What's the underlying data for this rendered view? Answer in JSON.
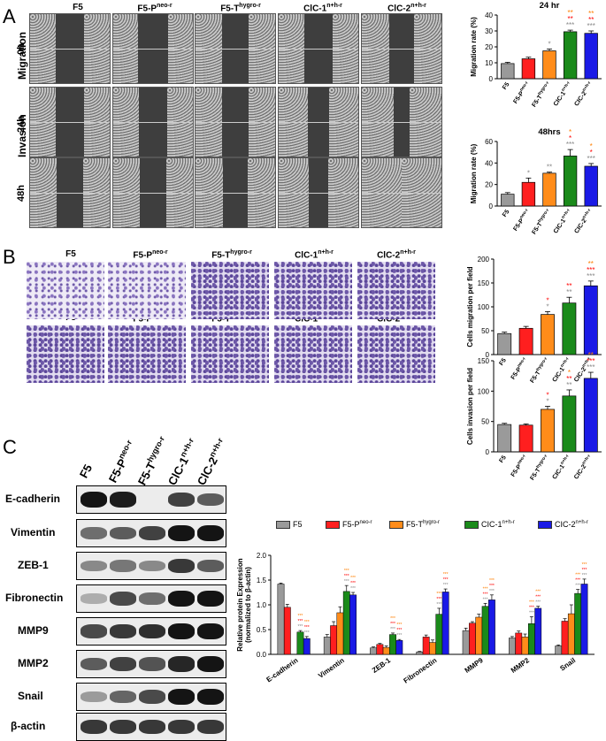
{
  "panels": {
    "a": "A",
    "b": "B",
    "c": "C"
  },
  "groups": [
    "F5",
    "F5-P",
    "F5-T",
    "CIC-1",
    "CIC-2"
  ],
  "group_sups": [
    "",
    "neo-r",
    "hygro-r",
    "n+h-r",
    "n+h-r"
  ],
  "colors": {
    "F5": "#9a9a9a",
    "F5-P": "#ff1f1f",
    "F5-T": "#ff8c1a",
    "CIC-1": "#1a8a1a",
    "CIC-2": "#1a1ae6",
    "sig_orange": "#ff7f00",
    "sig_red": "#ff0000",
    "sig_gray": "#888888"
  },
  "panel_a": {
    "row_labels": [
      "Migration",
      "Invasion",
      "0h",
      "24h",
      "48h"
    ],
    "header": [
      "F5",
      "F5-P",
      "F5-T",
      "ClC-1",
      "ClC-2"
    ],
    "header_sups": [
      "",
      "neo-r",
      "hygro-r",
      "n+h-r",
      "n+h-r"
    ]
  },
  "panel_b": {
    "header": [
      "F5",
      "F5-P",
      "F5-T",
      "ClC-1",
      "ClC-2"
    ],
    "header_sups": [
      "",
      "neo-r",
      "hygro-r",
      "n+h-r",
      "n+h-r"
    ]
  },
  "panel_c": {
    "header": [
      "F5",
      "F5-P",
      "F5-T",
      "ClC-1",
      "ClC-2"
    ],
    "header_sups": [
      "",
      "neo-r",
      "hygro-r",
      "n+h-r",
      "n+h-r"
    ],
    "proteins": [
      "E-cadherin",
      "Vimentin",
      "ZEB-1",
      "Fibronectin",
      "MMP9",
      "MMP2",
      "Snail",
      "β-actin"
    ],
    "legend": [
      "F5",
      "F5-P",
      "F5-T",
      "CIC-1",
      "CIC-2"
    ],
    "legend_sups": [
      "",
      "neo-r",
      "hygro-r",
      "n+h-r",
      "n+h-r"
    ]
  },
  "chart_data": [
    {
      "type": "bar",
      "title": "24 hr",
      "categories": [
        "F5",
        "F5-P",
        "F5-T",
        "CIC-1",
        "CIC-2"
      ],
      "category_sups": [
        "",
        "neo-r",
        "hygro-r",
        "n+h-r",
        "n+h-r"
      ],
      "values": [
        9.5,
        12.5,
        17.5,
        29.5,
        28.5
      ],
      "errors": [
        0.8,
        1.0,
        1.2,
        1.0,
        1.5
      ],
      "sig": [
        [],
        [],
        [
          "*"
        ],
        [
          "**",
          "**",
          "***"
        ],
        [
          "**",
          "**",
          "***"
        ]
      ],
      "ylabel": "Migration rate (%)",
      "ylim": [
        0,
        40
      ],
      "yticks": [
        0,
        10,
        20,
        30,
        40
      ]
    },
    {
      "type": "bar",
      "title": "48hrs",
      "categories": [
        "F5",
        "F5-P",
        "F5-T",
        "CIC-1",
        "CIC-2"
      ],
      "category_sups": [
        "",
        "neo-r",
        "hygro-r",
        "n+h-r",
        "n+h-r"
      ],
      "values": [
        11,
        22,
        30.5,
        46.5,
        37
      ],
      "errors": [
        1.5,
        4,
        1,
        6,
        2.5
      ],
      "sig": [
        [],
        [
          "*"
        ],
        [
          "**"
        ],
        [
          "*",
          "*",
          "***"
        ],
        [
          "*",
          "*",
          "***"
        ]
      ],
      "ylabel": "Migration rate (%)",
      "ylim": [
        0,
        60
      ],
      "yticks": [
        0,
        20,
        40,
        60
      ]
    },
    {
      "type": "bar",
      "title": "",
      "categories": [
        "F5",
        "F5-P",
        "F5-T",
        "CIC-1",
        "CIC-2"
      ],
      "category_sups": [
        "",
        "neo-r",
        "hygro-r",
        "n+h-r",
        "n+h-r"
      ],
      "values": [
        44,
        55,
        84,
        108,
        144
      ],
      "errors": [
        3,
        4,
        6,
        12,
        10
      ],
      "sig": [
        [],
        [],
        [
          "*",
          "*"
        ],
        [
          "**",
          "**"
        ],
        [
          "**",
          "***",
          "***"
        ]
      ],
      "ylabel": "Cells migration per field",
      "ylim": [
        0,
        200
      ],
      "yticks": [
        0,
        50,
        100,
        150,
        200
      ]
    },
    {
      "type": "bar",
      "title": "",
      "categories": [
        "F5",
        "F5-P",
        "F5-T",
        "CIC-1",
        "CIC-2"
      ],
      "category_sups": [
        "",
        "neo-r",
        "hygro-r",
        "n+h-r",
        "n+h-r"
      ],
      "values": [
        45,
        44,
        70,
        92,
        121
      ],
      "errors": [
        2,
        2,
        5,
        10,
        10
      ],
      "sig": [
        [],
        [],
        [
          "*",
          "*"
        ],
        [
          "*",
          "**",
          "**"
        ],
        [
          "**",
          "***",
          "***"
        ]
      ],
      "ylabel": "Cells invasion per field",
      "ylim": [
        0,
        150
      ],
      "yticks": [
        0,
        50,
        100,
        150
      ]
    },
    {
      "type": "bar",
      "title": "",
      "categories": [
        "E-cadherin",
        "Vimentin",
        "ZEB-1",
        "Fibronectin",
        "MMP9",
        "MMP2",
        "Snail"
      ],
      "series": [
        {
          "name": "F5",
          "values": [
            1.42,
            0.35,
            0.13,
            0.05,
            0.48,
            0.33,
            0.17
          ],
          "errors": [
            0.02,
            0.05,
            0.02,
            0.01,
            0.05,
            0.03,
            0.02
          ]
        },
        {
          "name": "F5-P",
          "values": [
            0.95,
            0.58,
            0.2,
            0.35,
            0.63,
            0.43,
            0.67
          ],
          "errors": [
            0.06,
            0.08,
            0.02,
            0.04,
            0.03,
            0.04,
            0.05
          ]
        },
        {
          "name": "F5-T",
          "values": [
            0.0,
            0.84,
            0.14,
            0.24,
            0.75,
            0.35,
            0.82
          ],
          "errors": [
            0.0,
            0.12,
            0.03,
            0.05,
            0.06,
            0.06,
            0.18
          ]
        },
        {
          "name": "CIC-1",
          "values": [
            0.45,
            1.27,
            0.4,
            0.81,
            0.97,
            0.62,
            1.23
          ],
          "errors": [
            0.03,
            0.12,
            0.03,
            0.12,
            0.06,
            0.14,
            0.08
          ]
        },
        {
          "name": "CIC-2",
          "values": [
            0.32,
            1.2,
            0.28,
            1.26,
            1.1,
            0.93,
            1.42
          ],
          "errors": [
            0.04,
            0.05,
            0.02,
            0.06,
            0.1,
            0.04,
            0.1
          ]
        }
      ],
      "ylabel": "Relative protein Expression",
      "ylabel2": "(normalized to β-actin)",
      "ylim": [
        0,
        2.0
      ],
      "yticks": [
        "0.0",
        "0.5",
        "1.0",
        "1.5",
        "2.0"
      ]
    }
  ]
}
